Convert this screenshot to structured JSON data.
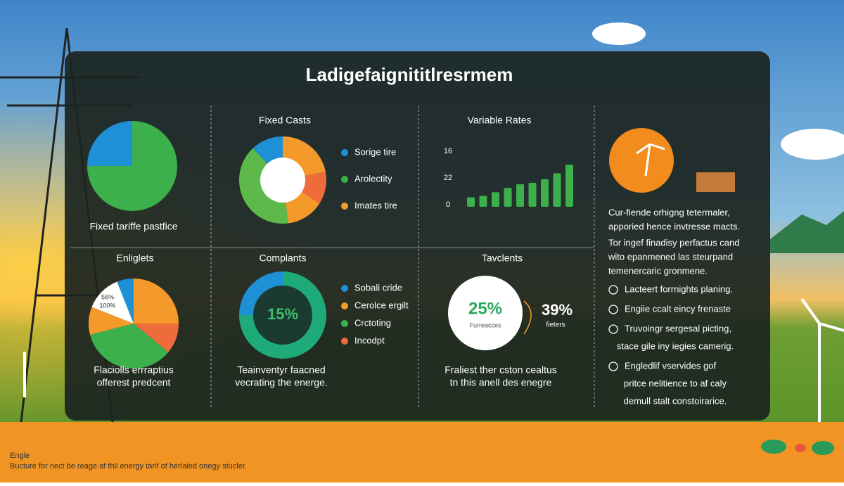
{
  "title": "Ladigefaignititlresrmem",
  "panels": [
    {
      "type": "pie",
      "slices": [
        {
          "color": "#1e90d6",
          "value": 25
        },
        {
          "color": "#3cb04a",
          "value": 75
        }
      ],
      "caption": [
        "Fixed tariffe pastfice"
      ]
    },
    {
      "type": "donut",
      "title": "Fixed Casts",
      "slices": [
        {
          "color": "#f39a2b",
          "value": 22
        },
        {
          "color": "#ee6b3b",
          "value": 12
        },
        {
          "color": "#f39a2b",
          "value": 14
        },
        {
          "color": "#5fb84a",
          "value": 40
        },
        {
          "color": "#1e90d6",
          "value": 12
        }
      ],
      "legend": [
        {
          "label": "Sorige tire",
          "color": "#1e90d6"
        },
        {
          "label": "Arolectity",
          "color": "#3cb04a"
        },
        {
          "label": "Imates tire",
          "color": "#f39a2b"
        }
      ]
    },
    {
      "type": "bars",
      "title": "Variable Rates",
      "axis_labels": [
        "16",
        "22",
        "0"
      ],
      "color": "#3cb04a",
      "values": [
        13,
        15,
        20,
        26,
        31,
        33,
        38,
        46,
        58
      ]
    },
    {
      "type": "text",
      "lines": [
        "Cur-fiende orhigng tetermaler,",
        "apporied hence invtresse macts.",
        "Tor ingef finadisy perfactus cand",
        "wito epanmened las steurpand",
        "temenercaric gronmene."
      ],
      "items": [
        [
          "Lacteert forrnights planing."
        ],
        [
          "Engiie ccalt eincy frenaste"
        ],
        [
          "Truvoingr sergesal picting,",
          "stace gile iny iegies camerig."
        ],
        [
          "Engledlif vservides gof",
          "pritce nelitience to af caly",
          "demull stalt constoirarice."
        ]
      ]
    },
    {
      "type": "pie",
      "title": "Enliglets",
      "slices": [
        {
          "color": "#f39a2b",
          "value": 25
        },
        {
          "color": "#ee6b3b",
          "value": 11
        },
        {
          "color": "#3cb04a",
          "value": 35
        },
        {
          "color": "#f39a2b",
          "value": 10
        },
        {
          "color": "#ffffff",
          "value": 13
        },
        {
          "color": "#1e90d6",
          "value": 6
        }
      ],
      "labels": [
        "56%",
        "100%"
      ],
      "caption": [
        "Flaciolls errraptius",
        "offerest predcent"
      ]
    },
    {
      "type": "donut",
      "title": "Complants",
      "slices": [
        {
          "color": "#1e90d6",
          "value": 25
        },
        {
          "color": "#1faa7a",
          "value": 75
        }
      ],
      "center": "15%",
      "legend": [
        {
          "label": "Sobali cride",
          "color": "#1e90d6"
        },
        {
          "label": "Cerolce ergilt",
          "color": "#f39a2b"
        },
        {
          "label": "Crctoting",
          "color": "#3cb04a"
        },
        {
          "label": "Incodpt",
          "color": "#ee6b3b"
        }
      ],
      "caption": [
        "Teainventyr faacned",
        "vecrating the energe."
      ]
    },
    {
      "type": "stat",
      "title": "Tavclents",
      "main": "25%",
      "main_sub": "Furreacces",
      "side": "39%",
      "side_sub": "fieters",
      "caption": [
        "Fraliest ther cston cealtus",
        "tn this anell des enegre"
      ]
    }
  ],
  "footer": {
    "title": "Engle",
    "text": "Bucture for nect be reage af thil energy tarif of herlaied onegy stucler."
  }
}
